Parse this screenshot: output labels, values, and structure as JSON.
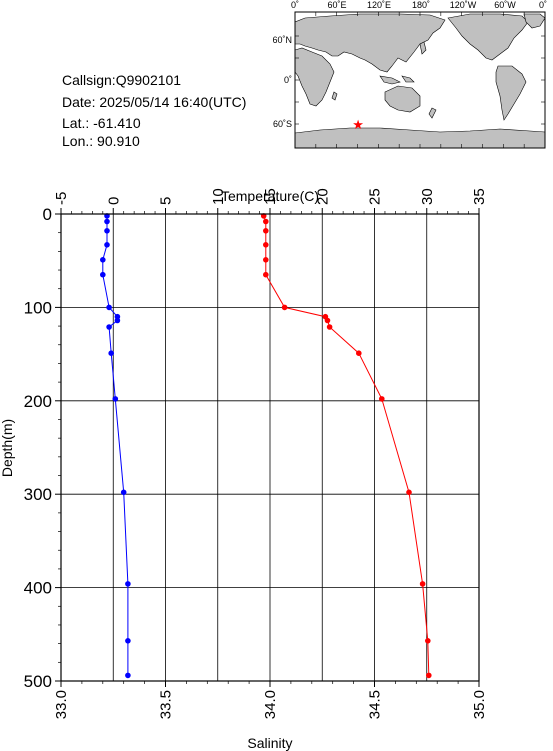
{
  "station": {
    "callsign": "Callsign:Q9902101",
    "date": "Date:  2025/05/14 16:40(UTC)",
    "lat": "Lat.:  -61.410",
    "lon": "Lon.:   90.910"
  },
  "map": {
    "lon_labels": [
      "0˚",
      "60˚E",
      "120˚E",
      "180˚",
      "120˚W",
      "60˚W",
      "0˚"
    ],
    "lat_labels": [
      "60˚N",
      "0˚",
      "60˚S"
    ],
    "marker": {
      "lon": 90.91,
      "lat": -61.41,
      "color": "#ff0000"
    },
    "land_color": "#c0c0c0"
  },
  "chart_data": {
    "type": "line",
    "ylabel": "Depth(m)",
    "ylim": [
      500,
      0
    ],
    "y_ticks": [
      0,
      100,
      200,
      300,
      400,
      500
    ],
    "grid": true,
    "temperature_axis": {
      "label": "Temperature(C)",
      "position": "top",
      "range": [
        -5,
        35
      ],
      "ticks": [
        -5,
        0,
        5,
        10,
        15,
        20,
        25,
        30,
        35
      ]
    },
    "salinity_axis": {
      "label": "Salinity",
      "position": "bottom",
      "range": [
        33.0,
        35.0
      ],
      "ticks": [
        "33.0",
        "33.5",
        "34.0",
        "34.5",
        "35.0"
      ]
    },
    "series": [
      {
        "quantity": "temperature",
        "color": "#ff0000",
        "points": [
          [
            14.4,
            2
          ],
          [
            14.6,
            8
          ],
          [
            14.6,
            18
          ],
          [
            14.6,
            33
          ],
          [
            14.6,
            49
          ],
          [
            14.6,
            65
          ],
          [
            16.4,
            100
          ],
          [
            20.3,
            110
          ],
          [
            20.5,
            114
          ],
          [
            20.7,
            121
          ],
          [
            23.5,
            149
          ],
          [
            25.7,
            198
          ],
          [
            28.3,
            298
          ],
          [
            29.6,
            396
          ],
          [
            30.1,
            457
          ],
          [
            30.2,
            494
          ]
        ]
      },
      {
        "quantity": "salinity",
        "color": "#0000ff",
        "points": [
          [
            33.22,
            2
          ],
          [
            33.22,
            8
          ],
          [
            33.22,
            18
          ],
          [
            33.22,
            33
          ],
          [
            33.2,
            49
          ],
          [
            33.2,
            65
          ],
          [
            33.23,
            100
          ],
          [
            33.27,
            110
          ],
          [
            33.27,
            114
          ],
          [
            33.23,
            121
          ],
          [
            33.24,
            149
          ],
          [
            33.26,
            198
          ],
          [
            33.3,
            298
          ],
          [
            33.32,
            396
          ],
          [
            33.32,
            457
          ],
          [
            33.32,
            494
          ]
        ]
      }
    ]
  }
}
